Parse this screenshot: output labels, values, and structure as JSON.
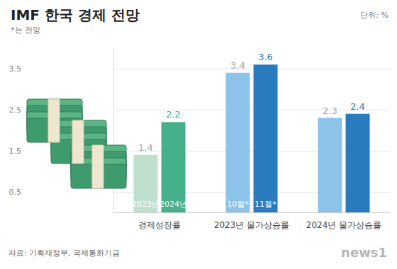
{
  "chart_data": {
    "type": "bar",
    "title": "IMF 한국 경제 전망",
    "subtitle": "*는 전망",
    "unit": "단위: %",
    "source": "자료: 기획재정부, 국제통화기금",
    "logo": "news1",
    "categories": [
      "경제성장률",
      "2023년 물가상승률",
      "2024년 물가상승률"
    ],
    "series": [
      {
        "colors": [
          "#bfe0cf",
          "#8dc3e8",
          "#8dc3e8"
        ],
        "values": [
          1.4,
          3.4,
          2.3
        ],
        "bar_labels": [
          "2023년",
          "10월*",
          null
        ]
      },
      {
        "colors": [
          "#45b08a",
          "#2a7bbd",
          "#2a7bbd"
        ],
        "values": [
          2.2,
          3.6,
          2.4
        ],
        "bar_labels": [
          "2024년",
          "11월*",
          null
        ]
      }
    ],
    "ylim": [
      0,
      4
    ],
    "yticks": [
      0.5,
      1.5,
      2.5,
      3.5
    ],
    "grid": true,
    "data_labels": true
  }
}
